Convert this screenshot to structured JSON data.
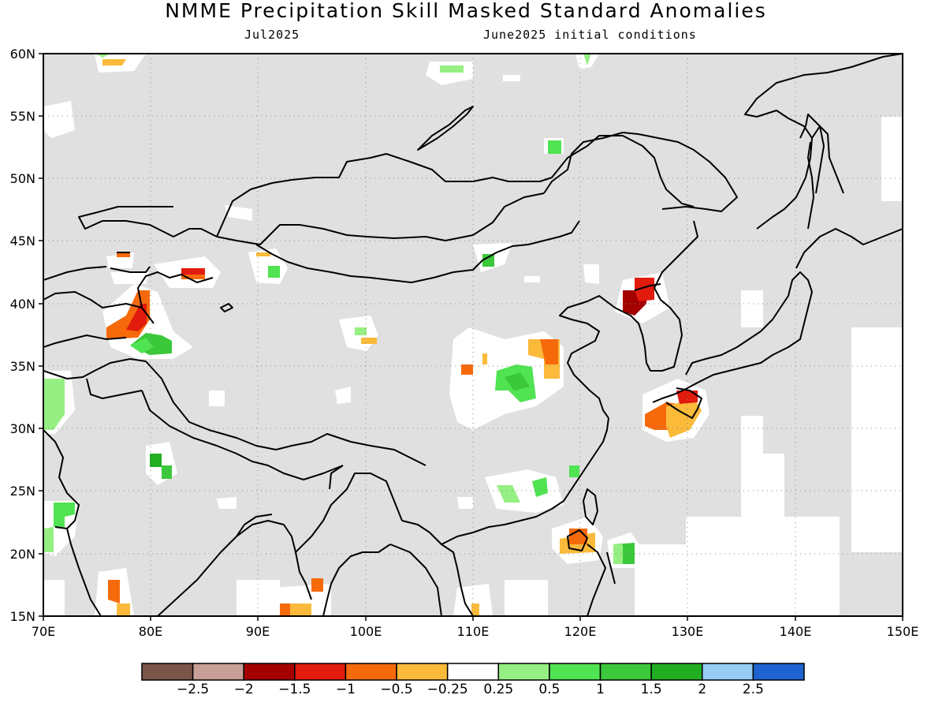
{
  "title": "NMME Precipitation Skill Masked Standard Anomalies",
  "subtitle_left": "Jul2025",
  "subtitle_right": "June2025 initial conditions",
  "map": {
    "lon_range": [
      70,
      150
    ],
    "lat_range": [
      15,
      60
    ],
    "land_color": "#e0e0e0",
    "masked_color": "#ffffff",
    "coast_color": "#000000",
    "grid": true,
    "lon_ticks": [
      "70E",
      "80E",
      "90E",
      "100E",
      "110E",
      "120E",
      "130E",
      "140E",
      "150E"
    ],
    "lat_ticks": [
      "15N",
      "20N",
      "25N",
      "30N",
      "35N",
      "40N",
      "45N",
      "50N",
      "55N",
      "60N"
    ]
  },
  "colorbar": {
    "colors": [
      "#7a5548",
      "#c89f96",
      "#a50000",
      "#e11b0e",
      "#f66a0b",
      "#fbba3a",
      "#ffffff",
      "#96ef82",
      "#50e352",
      "#3bc83b",
      "#21ae21",
      "#96cdf5",
      "#1e63d0"
    ],
    "labels": [
      "-2.5",
      "-2",
      "-1.5",
      "-1",
      "-0.5",
      "-0.25",
      "0.25",
      "0.5",
      "1",
      "1.5",
      "2",
      "2.5"
    ]
  },
  "anomaly_patches": [
    {
      "lon": 124.3,
      "lat": 40.3,
      "value": -1.5
    },
    {
      "lon": 126.2,
      "lat": 40.8,
      "value": -1
    },
    {
      "lon": 78.5,
      "lat": 38.0,
      "value": -1
    },
    {
      "lon": 84.5,
      "lat": 42.2,
      "value": -1.5
    },
    {
      "lon": 127.8,
      "lat": 31.2,
      "value": -1
    },
    {
      "lon": 129.8,
      "lat": 31.0,
      "value": -0.5
    },
    {
      "lon": 116.6,
      "lat": 36.2,
      "value": -0.5
    },
    {
      "lon": 120.5,
      "lat": 21.0,
      "value": -1
    },
    {
      "lon": 94.5,
      "lat": 16.0,
      "value": -0.5
    },
    {
      "lon": 77.8,
      "lat": 17.3,
      "value": -1
    },
    {
      "lon": 78.5,
      "lat": 37.0,
      "value": 1
    },
    {
      "lon": 112.8,
      "lat": 33.8,
      "value": 1
    },
    {
      "lon": 72.5,
      "lat": 32.5,
      "value": 0.5
    },
    {
      "lon": 72.0,
      "lat": 23.0,
      "value": 1
    },
    {
      "lon": 125.0,
      "lat": 20.0,
      "value": 1
    },
    {
      "lon": 116.0,
      "lat": 25.0,
      "value": 1
    },
    {
      "lon": 79.5,
      "lat": 26.5,
      "value": 1.5
    },
    {
      "lon": 101.0,
      "lat": 37.8,
      "value": 1
    },
    {
      "lon": 88.5,
      "lat": 42.8,
      "value": 1
    },
    {
      "lon": 105.5,
      "lat": 42.5,
      "value": 1.5
    },
    {
      "lon": 116.8,
      "lat": 52.2,
      "value": 1
    }
  ]
}
